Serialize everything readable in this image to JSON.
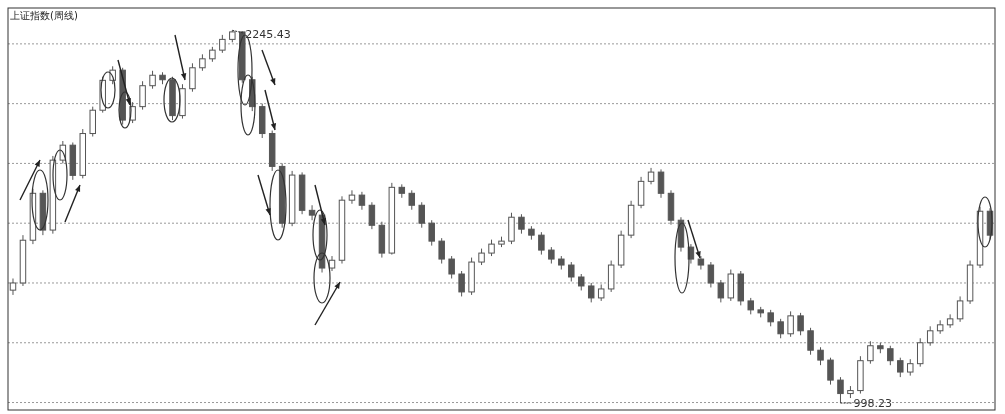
{
  "chart_data": {
    "type": "candlestick",
    "title": "上证指数(周线)",
    "categories": [
      null,
      null,
      null,
      null,
      null,
      null,
      null,
      null,
      null,
      null,
      null,
      null,
      null,
      null,
      null,
      null,
      null,
      null,
      null,
      null,
      null,
      null,
      null,
      null,
      null,
      null,
      null,
      null,
      null,
      null,
      null,
      null,
      null,
      null,
      null,
      null,
      null,
      null,
      null,
      null,
      null,
      null,
      null,
      null,
      null,
      null,
      null,
      null,
      null,
      null,
      null,
      null,
      null,
      null,
      null,
      null,
      null,
      null,
      null,
      null,
      null,
      null,
      null,
      null,
      null,
      null,
      null,
      null,
      null,
      null,
      null,
      null,
      null,
      null,
      null,
      null,
      null,
      null,
      null,
      null,
      null,
      null,
      null,
      null,
      null,
      null,
      null,
      null,
      null,
      null,
      null,
      null,
      null,
      null,
      null,
      null,
      null,
      null,
      null
    ],
    "ohlc": [
      [
        1376,
        1415,
        1360,
        1400
      ],
      [
        1400,
        1560,
        1390,
        1543
      ],
      [
        1543,
        1715,
        1530,
        1700
      ],
      [
        1700,
        1710,
        1560,
        1577
      ],
      [
        1577,
        1825,
        1565,
        1811
      ],
      [
        1811,
        1875,
        1800,
        1861
      ],
      [
        1861,
        1870,
        1745,
        1760
      ],
      [
        1760,
        1915,
        1750,
        1900
      ],
      [
        1900,
        1990,
        1890,
        1978
      ],
      [
        1978,
        2090,
        1970,
        2078
      ],
      [
        2078,
        2125,
        2065,
        2112
      ],
      [
        2112,
        2120,
        1930,
        1945
      ],
      [
        1945,
        2005,
        1935,
        1990
      ],
      [
        1990,
        2075,
        1980,
        2060
      ],
      [
        2060,
        2110,
        2050,
        2095
      ],
      [
        2095,
        2105,
        2065,
        2080
      ],
      [
        2080,
        2090,
        1945,
        1960
      ],
      [
        1960,
        2065,
        1950,
        2050
      ],
      [
        2050,
        2135,
        2040,
        2120
      ],
      [
        2120,
        2165,
        2110,
        2150
      ],
      [
        2150,
        2190,
        2140,
        2179
      ],
      [
        2179,
        2230,
        2170,
        2215
      ],
      [
        2215,
        2245.43,
        2205,
        2240
      ],
      [
        2240,
        2242,
        2070,
        2080
      ],
      [
        2080,
        2090,
        1975,
        1990
      ],
      [
        1990,
        2000,
        1885,
        1900
      ],
      [
        1900,
        1910,
        1775,
        1790
      ],
      [
        1790,
        1800,
        1585,
        1600
      ],
      [
        1600,
        1775,
        1590,
        1761
      ],
      [
        1761,
        1770,
        1630,
        1643
      ],
      [
        1643,
        1660,
        1610,
        1627
      ],
      [
        1627,
        1640,
        1435,
        1450
      ],
      [
        1450,
        1490,
        1440,
        1476
      ],
      [
        1476,
        1690,
        1465,
        1677
      ],
      [
        1677,
        1710,
        1665,
        1694
      ],
      [
        1694,
        1705,
        1645,
        1660
      ],
      [
        1660,
        1670,
        1580,
        1593
      ],
      [
        1593,
        1605,
        1485,
        1500
      ],
      [
        1500,
        1735,
        1495,
        1720
      ],
      [
        1720,
        1730,
        1685,
        1700
      ],
      [
        1700,
        1710,
        1645,
        1660
      ],
      [
        1660,
        1670,
        1585,
        1600
      ],
      [
        1600,
        1610,
        1525,
        1540
      ],
      [
        1540,
        1550,
        1465,
        1480
      ],
      [
        1480,
        1490,
        1415,
        1430
      ],
      [
        1430,
        1440,
        1355,
        1370
      ],
      [
        1370,
        1485,
        1360,
        1470
      ],
      [
        1470,
        1515,
        1460,
        1500
      ],
      [
        1500,
        1545,
        1490,
        1530
      ],
      [
        1530,
        1555,
        1520,
        1540
      ],
      [
        1540,
        1635,
        1530,
        1620
      ],
      [
        1620,
        1630,
        1565,
        1580
      ],
      [
        1580,
        1590,
        1545,
        1560
      ],
      [
        1560,
        1570,
        1495,
        1510
      ],
      [
        1510,
        1520,
        1465,
        1480
      ],
      [
        1480,
        1490,
        1445,
        1460
      ],
      [
        1460,
        1470,
        1405,
        1420
      ],
      [
        1420,
        1430,
        1375,
        1390
      ],
      [
        1390,
        1400,
        1335,
        1350
      ],
      [
        1350,
        1395,
        1340,
        1380
      ],
      [
        1380,
        1475,
        1370,
        1460
      ],
      [
        1460,
        1575,
        1450,
        1560
      ],
      [
        1560,
        1675,
        1550,
        1660
      ],
      [
        1660,
        1755,
        1650,
        1740
      ],
      [
        1740,
        1785,
        1730,
        1771
      ],
      [
        1771,
        1780,
        1685,
        1700
      ],
      [
        1700,
        1710,
        1595,
        1610
      ],
      [
        1610,
        1620,
        1505,
        1520
      ],
      [
        1520,
        1530,
        1465,
        1480
      ],
      [
        1480,
        1490,
        1445,
        1460
      ],
      [
        1460,
        1470,
        1385,
        1400
      ],
      [
        1400,
        1410,
        1335,
        1350
      ],
      [
        1350,
        1445,
        1340,
        1430
      ],
      [
        1430,
        1440,
        1325,
        1340
      ],
      [
        1340,
        1350,
        1295,
        1310
      ],
      [
        1310,
        1320,
        1285,
        1300
      ],
      [
        1300,
        1310,
        1255,
        1270
      ],
      [
        1270,
        1280,
        1215,
        1230
      ],
      [
        1230,
        1305,
        1220,
        1290
      ],
      [
        1290,
        1300,
        1225,
        1240
      ],
      [
        1240,
        1250,
        1160,
        1175
      ],
      [
        1175,
        1185,
        1125,
        1142
      ],
      [
        1142,
        1150,
        1060,
        1075
      ],
      [
        1075,
        1085,
        998.23,
        1030
      ],
      [
        1030,
        1055,
        1015,
        1040
      ],
      [
        1040,
        1155,
        1030,
        1140
      ],
      [
        1140,
        1205,
        1130,
        1190
      ],
      [
        1190,
        1200,
        1165,
        1180
      ],
      [
        1180,
        1190,
        1125,
        1140
      ],
      [
        1140,
        1150,
        1085,
        1102
      ],
      [
        1102,
        1145,
        1090,
        1130
      ],
      [
        1130,
        1215,
        1120,
        1200
      ],
      [
        1200,
        1255,
        1190,
        1240
      ],
      [
        1240,
        1275,
        1230,
        1260
      ],
      [
        1260,
        1295,
        1250,
        1280
      ],
      [
        1280,
        1355,
        1270,
        1340
      ],
      [
        1340,
        1475,
        1330,
        1460
      ],
      [
        1460,
        1655,
        1450,
        1640
      ],
      [
        1640,
        1650,
        1545,
        1560
      ]
    ],
    "color": "#555555",
    "ylim": [
      975,
      2320
    ],
    "yticks": [
      {
        "value": 1000,
        "label": null
      },
      {
        "value": 1200,
        "label": null
      },
      {
        "value": 1400,
        "label": null
      },
      {
        "value": 1600,
        "label": null
      },
      {
        "value": 1800,
        "label": null
      },
      {
        "value": 2000,
        "label": null
      },
      {
        "value": 2200,
        "label": null
      }
    ],
    "grid": "y",
    "annotations": [
      "2245.43",
      "998.23"
    ]
  }
}
